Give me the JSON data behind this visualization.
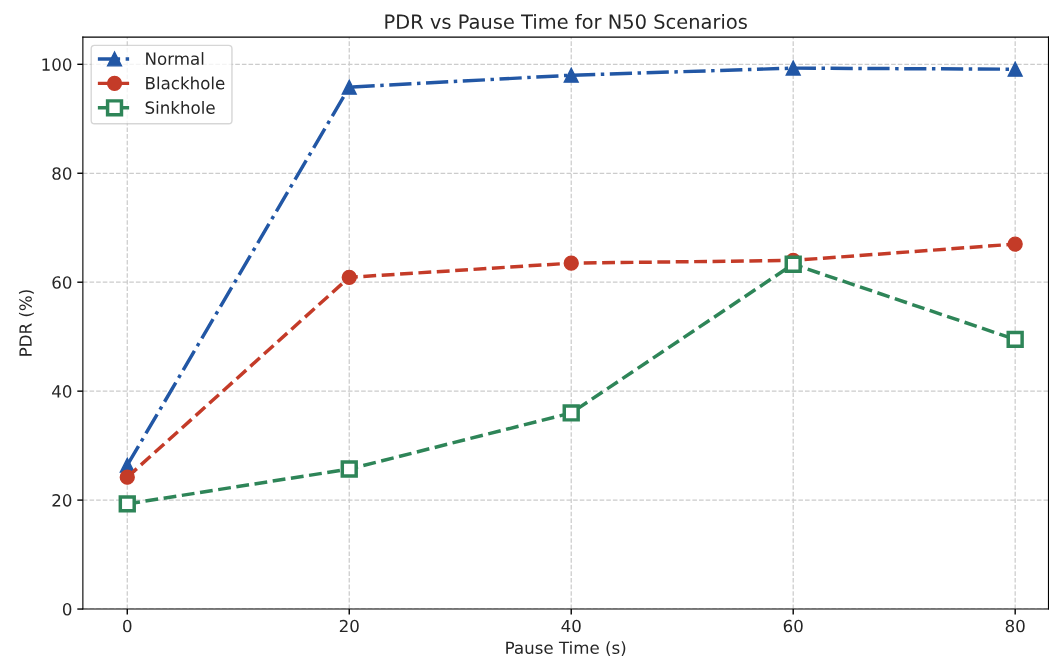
{
  "chart_data": {
    "type": "line",
    "title": "PDR vs Pause Time for N50 Scenarios",
    "xlabel": "Pause Time (s)",
    "ylabel": "PDR (%)",
    "x": [
      0,
      20,
      40,
      60,
      80
    ],
    "series": [
      {
        "name": "Normal",
        "color": "#2257a5",
        "marker": "triangle",
        "line_style": "dashdot",
        "values": [
          26.4,
          95.8,
          98.0,
          99.3,
          99.1
        ]
      },
      {
        "name": "Blackhole",
        "color": "#c43b28",
        "marker": "circle",
        "line_style": "dashed",
        "values": [
          24.2,
          60.9,
          63.5,
          64.0,
          67.0
        ]
      },
      {
        "name": "Sinkhole",
        "color": "#2e8558",
        "marker": "square",
        "line_style": "dashed",
        "values": [
          19.3,
          25.7,
          36.0,
          63.3,
          49.5
        ]
      }
    ],
    "xlim": [
      -4,
      83
    ],
    "xticks": [
      0,
      20,
      40,
      60,
      80
    ],
    "ylim": [
      0,
      105
    ],
    "yticks": [
      0,
      20,
      40,
      60,
      80,
      100
    ],
    "grid": true,
    "legend": "top left"
  }
}
